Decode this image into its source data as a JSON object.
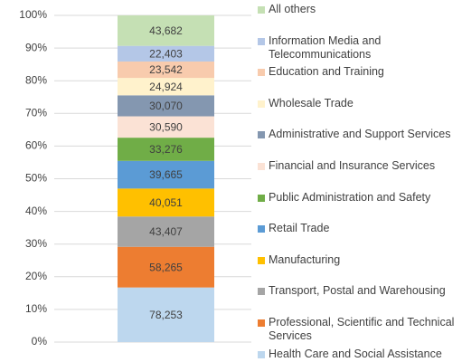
{
  "chart_data": {
    "type": "stacked_percent_bar",
    "ylim": [
      0,
      100
    ],
    "yticks": [
      {
        "value": 0,
        "label": "0%"
      },
      {
        "value": 10,
        "label": "10%"
      },
      {
        "value": 20,
        "label": "20%"
      },
      {
        "value": 30,
        "label": "30%"
      },
      {
        "value": 40,
        "label": "40%"
      },
      {
        "value": 50,
        "label": "50%"
      },
      {
        "value": 60,
        "label": "60%"
      },
      {
        "value": 70,
        "label": "70%"
      },
      {
        "value": 80,
        "label": "80%"
      },
      {
        "value": 90,
        "label": "90%"
      },
      {
        "value": 100,
        "label": "100%"
      }
    ],
    "grid": true,
    "legend": "right",
    "series": [
      {
        "name": "Health Care and Social Assistance",
        "color": "#bdd7ee",
        "values": [
          78253
        ],
        "value_labels": [
          "78,253"
        ]
      },
      {
        "name": "Professional, Scientific and Technical Services",
        "color": "#ed7d31",
        "values": [
          58265
        ],
        "value_labels": [
          "58,265"
        ]
      },
      {
        "name": "Transport, Postal and Warehousing",
        "color": "#a5a5a5",
        "values": [
          43407
        ],
        "value_labels": [
          "43,407"
        ]
      },
      {
        "name": "Manufacturing",
        "color": "#ffc000",
        "values": [
          40051
        ],
        "value_labels": [
          "40,051"
        ]
      },
      {
        "name": "Retail Trade",
        "color": "#5b9bd5",
        "values": [
          39665
        ],
        "value_labels": [
          "39,665"
        ]
      },
      {
        "name": "Public Administration and Safety",
        "color": "#70ad47",
        "values": [
          33276
        ],
        "value_labels": [
          "33,276"
        ]
      },
      {
        "name": "Financial and Insurance Services",
        "color": "#fbe2d5",
        "values": [
          30590
        ],
        "value_labels": [
          "30,590"
        ]
      },
      {
        "name": "Administrative and Support Services",
        "color": "#8497b0",
        "values": [
          30070
        ],
        "value_labels": [
          "30,070"
        ]
      },
      {
        "name": "Wholesale Trade",
        "color": "#fff2cc",
        "values": [
          24924
        ],
        "value_labels": [
          "24,924"
        ]
      },
      {
        "name": "Education and Training",
        "color": "#f8cbad",
        "values": [
          23542
        ],
        "value_labels": [
          "23,542"
        ]
      },
      {
        "name": "Information Media and Telecommunications",
        "color": "#b4c7e7",
        "values": [
          22403
        ],
        "value_labels": [
          "22,403"
        ]
      },
      {
        "name": "All others",
        "color": "#c5e0b4",
        "values": [
          43682
        ],
        "value_labels": [
          "43,682"
        ]
      }
    ]
  }
}
